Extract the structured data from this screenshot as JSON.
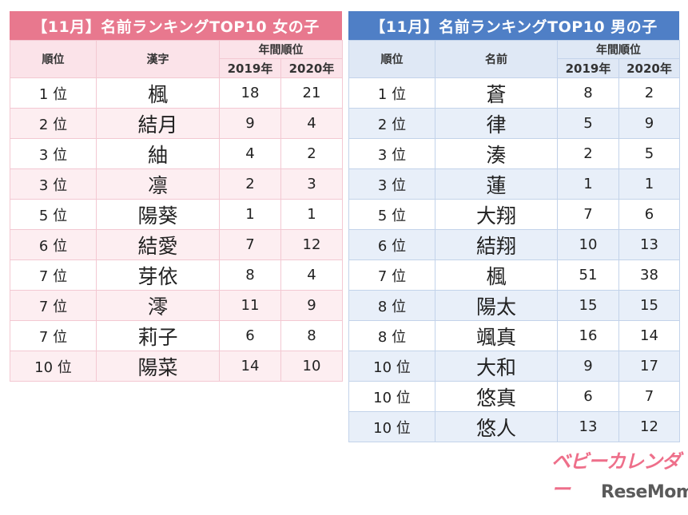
{
  "girls": {
    "title": "【11月】名前ランキングTOP10 女の子",
    "headers": {
      "rank": "順位",
      "name": "漢字",
      "annual_rank": "年間順位",
      "y2019": "2019年",
      "y2020": "2020年"
    },
    "rows": [
      {
        "rank": "1 位",
        "name": "楓",
        "y2019": "18",
        "y2020": "21"
      },
      {
        "rank": "2 位",
        "name": "結月",
        "y2019": "9",
        "y2020": "4"
      },
      {
        "rank": "3 位",
        "name": "紬",
        "y2019": "4",
        "y2020": "2"
      },
      {
        "rank": "3 位",
        "name": "凛",
        "y2019": "2",
        "y2020": "3"
      },
      {
        "rank": "5 位",
        "name": "陽葵",
        "y2019": "1",
        "y2020": "1"
      },
      {
        "rank": "6 位",
        "name": "結愛",
        "y2019": "7",
        "y2020": "12"
      },
      {
        "rank": "7 位",
        "name": "芽依",
        "y2019": "8",
        "y2020": "4"
      },
      {
        "rank": "7 位",
        "name": "澪",
        "y2019": "11",
        "y2020": "9"
      },
      {
        "rank": "7 位",
        "name": "莉子",
        "y2019": "6",
        "y2020": "8"
      },
      {
        "rank": "10 位",
        "name": "陽菜",
        "y2019": "14",
        "y2020": "10"
      }
    ]
  },
  "boys": {
    "title": "【11月】名前ランキングTOP10 男の子",
    "headers": {
      "rank": "順位",
      "name": "名前",
      "annual_rank": "年間順位",
      "y2019": "2019年",
      "y2020": "2020年"
    },
    "rows": [
      {
        "rank": "1 位",
        "name": "蒼",
        "y2019": "8",
        "y2020": "2"
      },
      {
        "rank": "2 位",
        "name": "律",
        "y2019": "5",
        "y2020": "9"
      },
      {
        "rank": "3 位",
        "name": "湊",
        "y2019": "2",
        "y2020": "5"
      },
      {
        "rank": "3 位",
        "name": "蓮",
        "y2019": "1",
        "y2020": "1"
      },
      {
        "rank": "5 位",
        "name": "大翔",
        "y2019": "7",
        "y2020": "6"
      },
      {
        "rank": "6 位",
        "name": "結翔",
        "y2019": "10",
        "y2020": "13"
      },
      {
        "rank": "7 位",
        "name": "楓",
        "y2019": "51",
        "y2020": "38"
      },
      {
        "rank": "8 位",
        "name": "陽太",
        "y2019": "15",
        "y2020": "15"
      },
      {
        "rank": "8 位",
        "name": "颯真",
        "y2019": "16",
        "y2020": "14"
      },
      {
        "rank": "10 位",
        "name": "大和",
        "y2019": "9",
        "y2020": "17"
      },
      {
        "rank": "10 位",
        "name": "悠真",
        "y2019": "6",
        "y2020": "7"
      },
      {
        "rank": "10 位",
        "name": "悠人",
        "y2019": "13",
        "y2020": "12"
      }
    ]
  },
  "logos": {
    "baby_calendar": "ベビーカレンダー",
    "resemom": "ReseMom"
  },
  "colors": {
    "girls_accent": "#e8788e",
    "boys_accent": "#4f7fc6"
  }
}
